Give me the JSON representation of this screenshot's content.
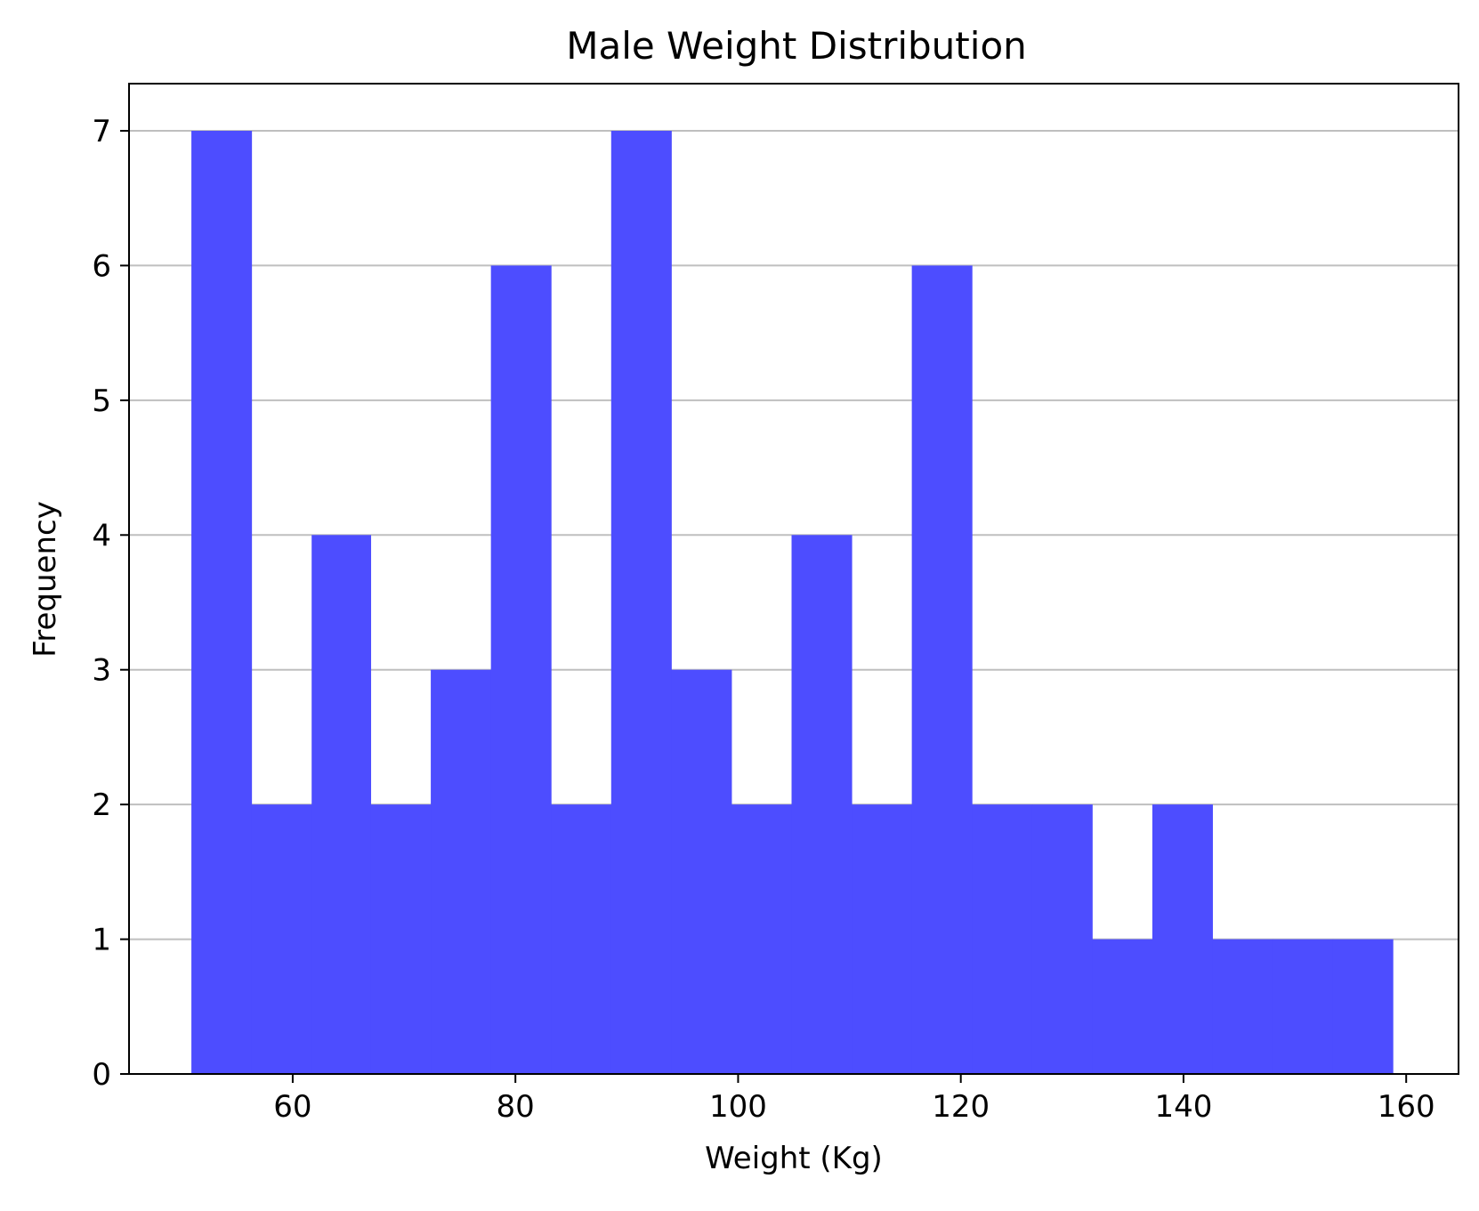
{
  "chart_data": {
    "type": "bar",
    "title": "Male Weight Distribution",
    "xlabel": "Weight (Kg)",
    "ylabel": "Frequency",
    "bar_color": "#4d4dff",
    "grid_color": "#bfbfbf",
    "grid": "y",
    "xlim": [
      45.3,
      164.7
    ],
    "ylim": [
      0,
      7.35
    ],
    "xticks": [
      60,
      80,
      100,
      120,
      140,
      160
    ],
    "yticks": [
      0,
      1,
      2,
      3,
      4,
      5,
      6,
      7
    ],
    "bins": [
      {
        "start": 50.9,
        "end": 56.3,
        "value": 7
      },
      {
        "start": 56.3,
        "end": 61.7,
        "value": 2
      },
      {
        "start": 61.7,
        "end": 67.0,
        "value": 4
      },
      {
        "start": 67.0,
        "end": 72.4,
        "value": 2
      },
      {
        "start": 72.4,
        "end": 77.8,
        "value": 3
      },
      {
        "start": 77.8,
        "end": 83.2,
        "value": 6
      },
      {
        "start": 83.2,
        "end": 88.6,
        "value": 2
      },
      {
        "start": 88.6,
        "end": 94.0,
        "value": 7
      },
      {
        "start": 94.0,
        "end": 99.4,
        "value": 3
      },
      {
        "start": 99.4,
        "end": 104.8,
        "value": 2
      },
      {
        "start": 104.8,
        "end": 110.2,
        "value": 4
      },
      {
        "start": 110.2,
        "end": 115.6,
        "value": 2
      },
      {
        "start": 115.6,
        "end": 121.0,
        "value": 6
      },
      {
        "start": 121.0,
        "end": 126.4,
        "value": 2
      },
      {
        "start": 126.4,
        "end": 131.8,
        "value": 2
      },
      {
        "start": 131.8,
        "end": 137.2,
        "value": 1
      },
      {
        "start": 137.2,
        "end": 142.6,
        "value": 2
      },
      {
        "start": 142.6,
        "end": 148.0,
        "value": 1
      },
      {
        "start": 148.0,
        "end": 153.4,
        "value": 1
      },
      {
        "start": 153.4,
        "end": 158.8,
        "value": 1
      }
    ]
  }
}
